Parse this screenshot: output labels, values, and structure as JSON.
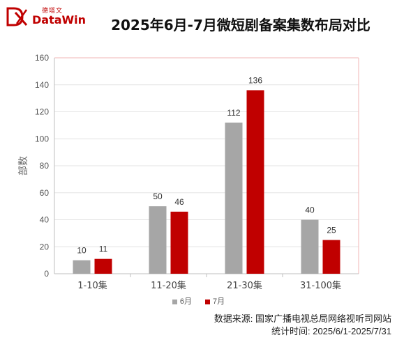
{
  "logo": {
    "cn": "德塔文",
    "en": "DataWin"
  },
  "colors": {
    "june": "#a6a6a6",
    "july": "#c00000",
    "grid": "#e3e3e3",
    "border": "#f2b5b5"
  },
  "chart_data": {
    "type": "bar",
    "title": "2025年6月-7月微短剧备案集数布局对比",
    "xlabel": "",
    "ylabel": "部数",
    "ylim": [
      0,
      160
    ],
    "yticks": [
      0,
      20,
      40,
      60,
      80,
      100,
      120,
      140,
      160
    ],
    "grid": true,
    "legend": "bottom",
    "categories": [
      "1-10集",
      "11-20集",
      "21-30集",
      "31-100集"
    ],
    "series": [
      {
        "name": "6月",
        "values": [
          10,
          50,
          112,
          40
        ]
      },
      {
        "name": "7月",
        "values": [
          11,
          46,
          136,
          25
        ]
      }
    ]
  },
  "footer": {
    "source": "数据来源:  国家广播电视总局网络视听司网站",
    "period": "统计时间:  2025/6/1-2025/7/31"
  }
}
